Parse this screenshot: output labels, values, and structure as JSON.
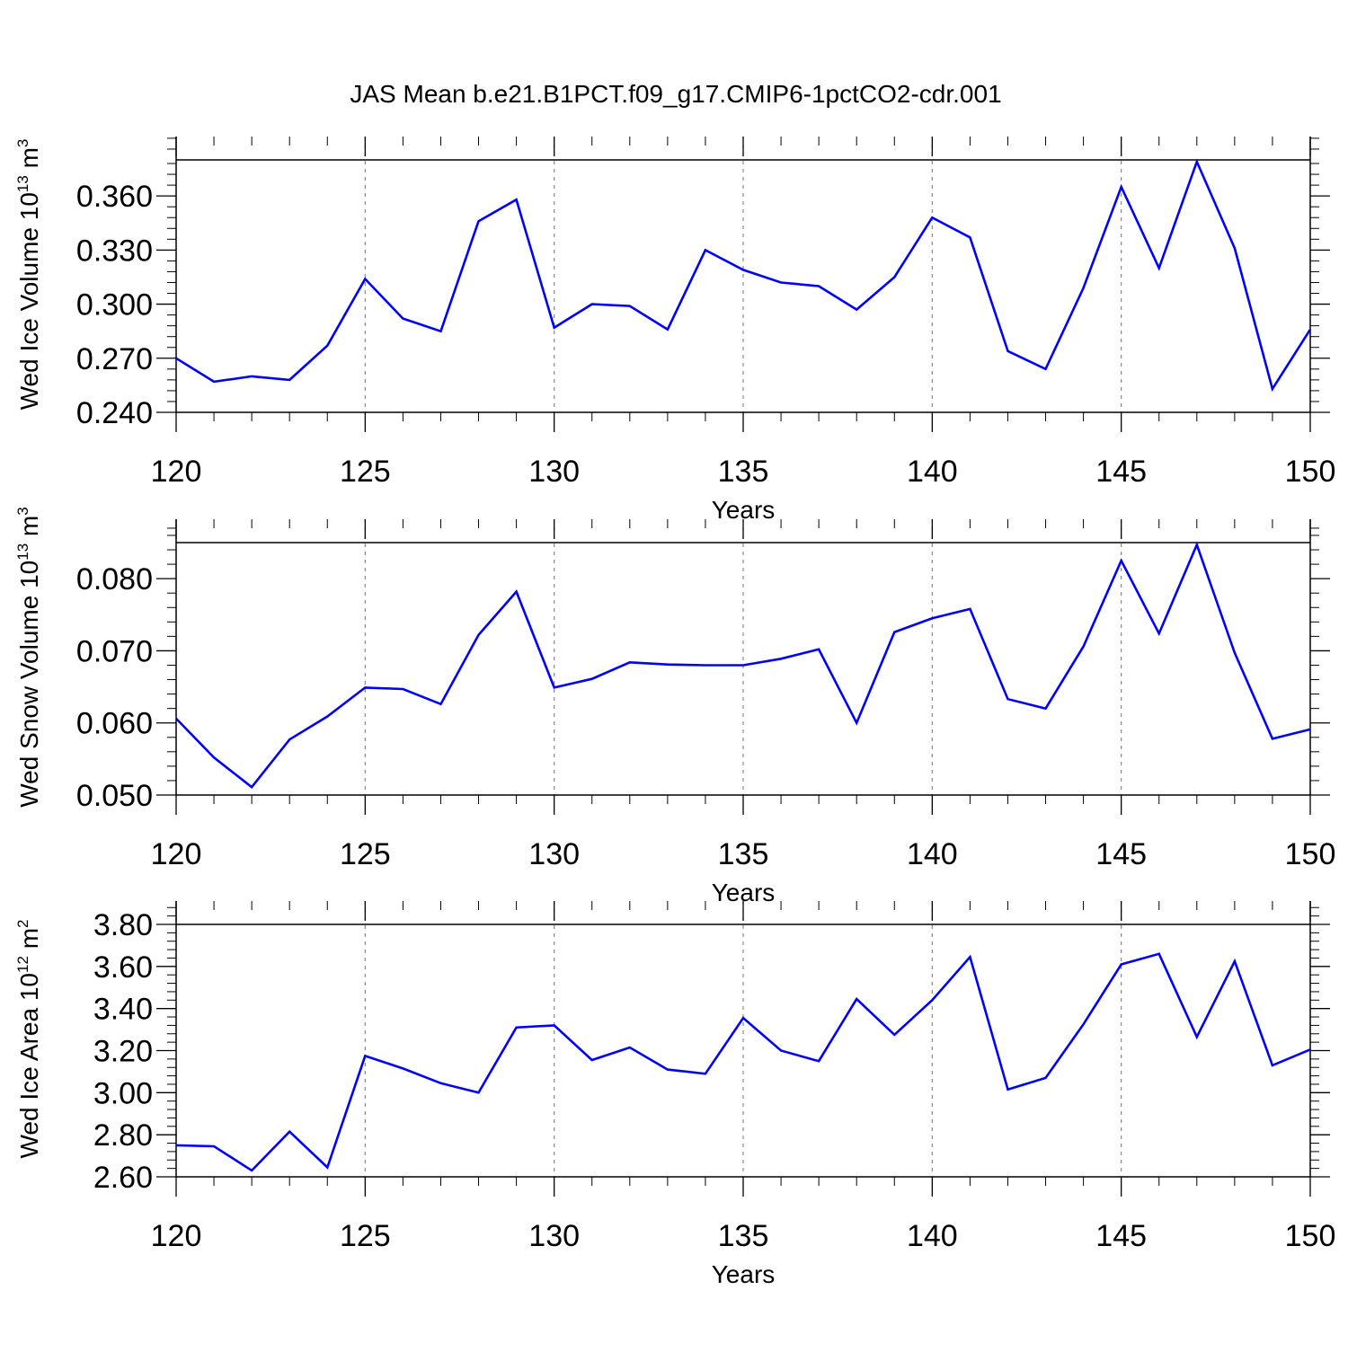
{
  "title": "JAS Mean b.e21.B1PCT.f09_g17.CMIP6-1pctCO2-cdr.001",
  "colors": {
    "line": "#0000ff",
    "axis": "#000000",
    "grid": "#888888"
  },
  "chart_data": [
    {
      "type": "line",
      "ylabel_main": "Wed Ice Volume 10",
      "ylabel_exp": "13",
      "ylabel_unit": "m",
      "ylabel_unit_exp": "3",
      "xlabel": "Years",
      "xlim": [
        120,
        150
      ],
      "ylim": [
        0.24,
        0.38
      ],
      "xticks": [
        120,
        125,
        130,
        135,
        140,
        145,
        150
      ],
      "xtick_labels": [
        "120",
        "125",
        "130",
        "135",
        "140",
        "145",
        "150"
      ],
      "yticks": [
        0.24,
        0.27,
        0.3,
        0.33,
        0.36
      ],
      "ytick_labels": [
        "0.240",
        "0.270",
        "0.300",
        "0.330",
        "0.360"
      ],
      "grid": "x dashed",
      "x": [
        120,
        121,
        122,
        123,
        124,
        125,
        126,
        127,
        128,
        129,
        130,
        131,
        132,
        133,
        134,
        135,
        136,
        137,
        138,
        139,
        140,
        141,
        142,
        143,
        144,
        145,
        146,
        147,
        148,
        149,
        150
      ],
      "values": [
        0.27,
        0.257,
        0.26,
        0.258,
        0.277,
        0.314,
        0.292,
        0.285,
        0.346,
        0.358,
        0.287,
        0.3,
        0.299,
        0.286,
        0.33,
        0.319,
        0.312,
        0.31,
        0.297,
        0.315,
        0.348,
        0.337,
        0.274,
        0.264,
        0.309,
        0.365,
        0.32,
        0.379,
        0.331,
        0.253,
        0.286
      ]
    },
    {
      "type": "line",
      "ylabel_main": "Wed Snow Volume 10",
      "ylabel_exp": "13",
      "ylabel_unit": "m",
      "ylabel_unit_exp": "3",
      "xlabel": "Years",
      "xlim": [
        120,
        150
      ],
      "ylim": [
        0.05,
        0.085
      ],
      "xticks": [
        120,
        125,
        130,
        135,
        140,
        145,
        150
      ],
      "xtick_labels": [
        "120",
        "125",
        "130",
        "135",
        "140",
        "145",
        "150"
      ],
      "yticks": [
        0.05,
        0.06,
        0.07,
        0.08
      ],
      "ytick_labels": [
        "0.050",
        "0.060",
        "0.070",
        "0.080"
      ],
      "grid": "x dashed",
      "x": [
        120,
        121,
        122,
        123,
        124,
        125,
        126,
        127,
        128,
        129,
        130,
        131,
        132,
        133,
        134,
        135,
        136,
        137,
        138,
        139,
        140,
        141,
        142,
        143,
        144,
        145,
        146,
        147,
        148,
        149,
        150
      ],
      "values": [
        0.0606,
        0.0552,
        0.0511,
        0.0577,
        0.0609,
        0.0649,
        0.0647,
        0.0626,
        0.0722,
        0.0782,
        0.0649,
        0.0661,
        0.0684,
        0.0681,
        0.068,
        0.068,
        0.0689,
        0.0702,
        0.06,
        0.0726,
        0.0745,
        0.0758,
        0.0633,
        0.062,
        0.0706,
        0.0825,
        0.0724,
        0.0847,
        0.0697,
        0.0578,
        0.0591
      ]
    },
    {
      "type": "line",
      "ylabel_main": "Wed Ice Area 10",
      "ylabel_exp": "12",
      "ylabel_unit": "m",
      "ylabel_unit_exp": "2",
      "xlabel": "Years",
      "xlim": [
        120,
        150
      ],
      "ylim": [
        2.6,
        3.8
      ],
      "xticks": [
        120,
        125,
        130,
        135,
        140,
        145,
        150
      ],
      "xtick_labels": [
        "120",
        "125",
        "130",
        "135",
        "140",
        "145",
        "150"
      ],
      "yticks": [
        2.6,
        2.8,
        3.0,
        3.2,
        3.4,
        3.6,
        3.8
      ],
      "ytick_labels": [
        "2.60",
        "2.80",
        "3.00",
        "3.20",
        "3.40",
        "3.60",
        "3.80"
      ],
      "grid": "x dashed",
      "x": [
        120,
        121,
        122,
        123,
        124,
        125,
        126,
        127,
        128,
        129,
        130,
        131,
        132,
        133,
        134,
        135,
        136,
        137,
        138,
        139,
        140,
        141,
        142,
        143,
        144,
        145,
        146,
        147,
        148,
        149,
        150
      ],
      "values": [
        2.75,
        2.745,
        2.63,
        2.815,
        2.645,
        3.175,
        3.115,
        3.045,
        3.0,
        3.31,
        3.32,
        3.155,
        3.215,
        3.11,
        3.09,
        3.355,
        3.2,
        3.15,
        3.445,
        3.275,
        3.44,
        3.645,
        3.015,
        3.07,
        3.325,
        3.61,
        3.66,
        3.265,
        3.625,
        3.13,
        3.205
      ]
    }
  ]
}
